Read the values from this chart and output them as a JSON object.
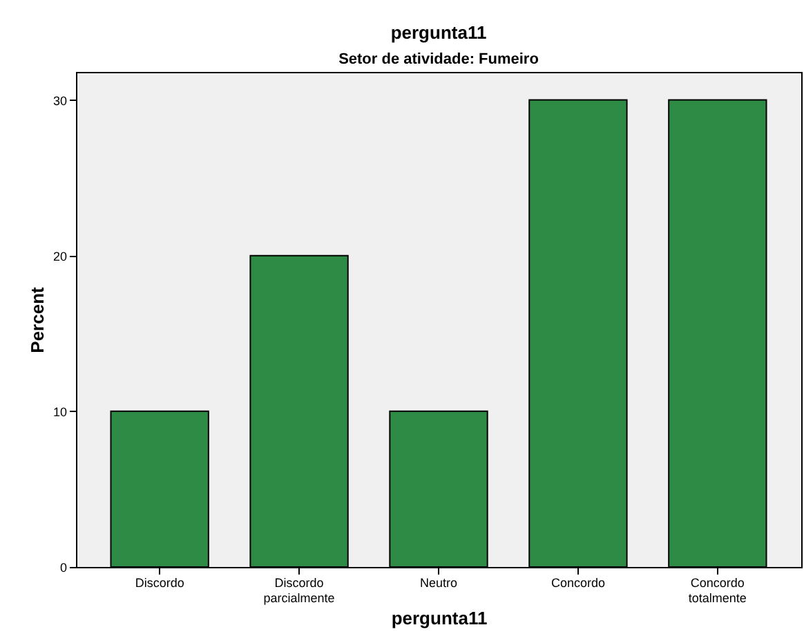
{
  "chart_data": {
    "type": "bar",
    "title": "pergunta11",
    "subtitle": "Setor de atividade: Fumeiro",
    "xlabel": "pergunta11",
    "ylabel": "Percent",
    "categories": [
      "Discordo",
      "Discordo parcialmente",
      "Neutro",
      "Concordo",
      "Concordo totalmente"
    ],
    "values": [
      10,
      20,
      10,
      30,
      30
    ],
    "color": "#2e8b45",
    "ylim": [
      0,
      31.8
    ],
    "yticks": [
      0,
      10,
      20,
      30
    ],
    "grid": false
  }
}
